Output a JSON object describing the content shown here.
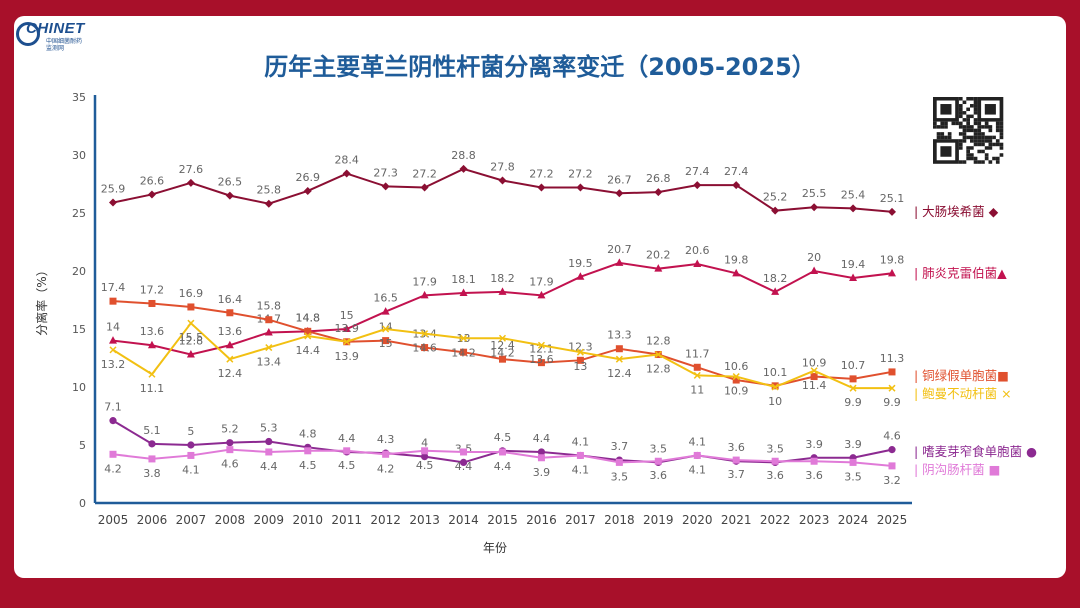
{
  "title": "历年主要革兰阴性杆菌分离率变迁（2005-2025）",
  "logo": {
    "name": "CHINET",
    "sub1": "中国细菌耐药",
    "sub2": "监测网"
  },
  "qr_icon": "qr-code-icon",
  "chart_data": {
    "type": "line",
    "title": "历年主要革兰阴性杆菌分离率变迁（2005-2025）",
    "xlabel": "年份",
    "ylabel": "分离率（%）",
    "ylim": [
      0,
      35
    ],
    "yticks": [
      0,
      5,
      10,
      15,
      20,
      25,
      30,
      35
    ],
    "categories": [
      "2005",
      "2006",
      "2007",
      "2008",
      "2009",
      "2010",
      "2011",
      "2012",
      "2013",
      "2014",
      "2015",
      "2016",
      "2017",
      "2018",
      "2019",
      "2020",
      "2021",
      "2022",
      "2023",
      "2024",
      "2025"
    ],
    "series": [
      {
        "name": "大肠埃希菌",
        "legend": "| 大肠埃希菌 ◆",
        "color": "#8b0f33",
        "marker": "diamond",
        "label_pos": "above",
        "values": [
          25.9,
          26.6,
          27.6,
          26.5,
          25.8,
          26.9,
          28.4,
          27.3,
          27.2,
          28.8,
          27.8,
          27.2,
          27.2,
          26.7,
          26.8,
          27.4,
          27.4,
          25.2,
          25.5,
          25.4,
          25.1
        ]
      },
      {
        "name": "肺炎克雷伯菌",
        "legend": "| 肺炎克雷伯菌▲",
        "color": "#c2124f",
        "marker": "triangle",
        "label_pos": "above",
        "values": [
          14,
          13.6,
          12.8,
          13.6,
          14.7,
          14.8,
          15,
          16.5,
          17.9,
          18.1,
          18.2,
          17.9,
          19.5,
          20.7,
          20.2,
          20.6,
          19.8,
          18.2,
          20,
          19.4,
          19.8
        ]
      },
      {
        "name": "铜绿假单胞菌",
        "legend": "| 铜绿假单胞菌■",
        "color": "#e0502e",
        "marker": "square",
        "label_pos": "above",
        "values": [
          17.4,
          17.2,
          16.9,
          16.4,
          15.8,
          14.8,
          13.9,
          14,
          13.4,
          13,
          12.4,
          12.1,
          12.3,
          13.3,
          12.8,
          11.7,
          10.6,
          10.1,
          10.9,
          10.7,
          11.3
        ]
      },
      {
        "name": "鲍曼不动杆菌",
        "legend": "| 鲍曼不动杆菌 ×",
        "color": "#f2c012",
        "marker": "cross",
        "label_pos": "below",
        "values": [
          13.2,
          11.1,
          15.5,
          12.4,
          13.4,
          14.4,
          13.9,
          15,
          14.6,
          14.2,
          14.2,
          13.6,
          13,
          12.4,
          12.8,
          11,
          10.9,
          10,
          11.4,
          9.9,
          9.9
        ]
      },
      {
        "name": "嗜麦芽窄食单胞菌",
        "legend": "| 嗜麦芽窄食单胞菌 ●",
        "color": "#8c2a91",
        "marker": "circle",
        "label_pos": "above",
        "values": [
          7.1,
          5.1,
          5,
          5.2,
          5.3,
          4.8,
          4.4,
          4.3,
          4,
          3.5,
          4.5,
          4.4,
          4.1,
          3.7,
          3.5,
          4.1,
          3.6,
          3.5,
          3.9,
          3.9,
          4.6
        ]
      },
      {
        "name": "阴沟肠杆菌",
        "legend": "| 阴沟肠杆菌 ■",
        "color": "#e07ad8",
        "marker": "square",
        "label_pos": "below",
        "values": [
          4.2,
          3.8,
          4.1,
          4.6,
          4.4,
          4.5,
          4.5,
          4.2,
          4.5,
          4.4,
          4.4,
          3.9,
          4.1,
          3.5,
          3.6,
          4.1,
          3.7,
          3.6,
          3.6,
          3.5,
          3.2
        ]
      }
    ]
  }
}
